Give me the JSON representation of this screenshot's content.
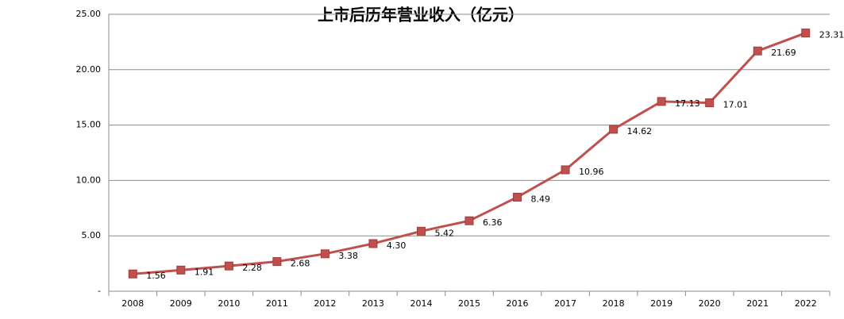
{
  "chart_data": {
    "type": "line",
    "title": "上市后历年营业收入（亿元）",
    "categories": [
      "2008",
      "2009",
      "2010",
      "2011",
      "2012",
      "2013",
      "2014",
      "2015",
      "2016",
      "2017",
      "2018",
      "2019",
      "2020",
      "2021",
      "2022"
    ],
    "series": [
      {
        "name": "营业收入",
        "color": "#c0504d",
        "values": [
          1.56,
          1.91,
          2.28,
          2.68,
          3.38,
          4.3,
          5.42,
          6.36,
          8.49,
          10.96,
          14.62,
          17.13,
          17.01,
          21.69,
          23.31
        ],
        "value_labels": [
          "1.56",
          "1.91",
          "2.28",
          "2.68",
          "3.38",
          "4.30",
          "5.42",
          "6.36",
          "8.49",
          "10.96",
          "14.62",
          "17.13",
          "17.01",
          "21.69",
          "23.31"
        ]
      }
    ],
    "ylim": [
      0,
      25
    ],
    "yticks": [
      {
        "value": 0,
        "label": "-"
      },
      {
        "value": 5,
        "label": "5.00"
      },
      {
        "value": 10,
        "label": "10.00"
      },
      {
        "value": 15,
        "label": "15.00"
      },
      {
        "value": 20,
        "label": "20.00"
      },
      {
        "value": 25,
        "label": "25.00"
      }
    ],
    "grid": true
  }
}
